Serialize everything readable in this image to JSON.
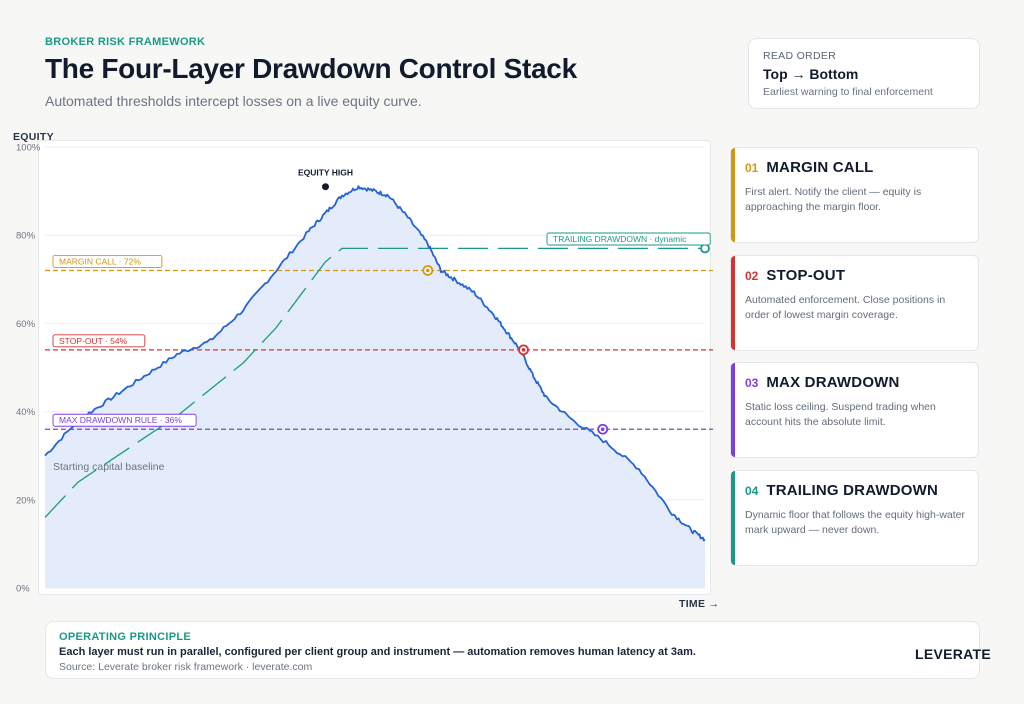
{
  "header": {
    "eyebrow": "BROKER RISK FRAMEWORK",
    "title": "The Four-Layer Drawdown Control Stack",
    "subtitle": "Automated thresholds intercept losses on a live equity curve."
  },
  "read_order": {
    "label": "READ ORDER",
    "value": "Top → Bottom",
    "note": "Earliest warning to final enforcement"
  },
  "layers": [
    {
      "num": "01",
      "name": "MARGIN CALL",
      "color": "#d4960f",
      "desc": "First alert. Notify the client — equity is approaching the margin floor."
    },
    {
      "num": "02",
      "name": "STOP-OUT",
      "color": "#d63333",
      "desc": "Automated enforcement. Close positions in order of lowest margin coverage."
    },
    {
      "num": "03",
      "name": "MAX DRAWDOWN",
      "color": "#7b3fe0",
      "desc": "Static loss ceiling. Suspend trading when account hits the absolute limit."
    },
    {
      "num": "04",
      "name": "TRAILING DRAWDOWN",
      "color": "#1a9a86",
      "desc": "Dynamic floor that follows the equity high-water mark upward — never down."
    }
  ],
  "footer": {
    "label": "OPERATING PRINCIPLE",
    "text": "Each layer must run in parallel, configured per client group and instrument — automation removes human latency at 3am.",
    "source": "Source: Leverate broker risk framework  ·  leverate.com",
    "brand": "LEVERATE"
  },
  "chart_data": {
    "type": "line",
    "ylabel": "EQUITY",
    "xlabel": "TIME →",
    "ylim": [
      0,
      100
    ],
    "xlim": [
      0,
      100
    ],
    "yticks": [
      "0%",
      "20%",
      "40%",
      "60%",
      "80%",
      "100%"
    ],
    "ytick_values": [
      0,
      20,
      40,
      60,
      80,
      100
    ],
    "grid": true,
    "baseline_label": "Starting capital baseline",
    "series": [
      {
        "type": "area",
        "color": "#2563d9",
        "x": [
          0,
          5,
          10,
          15,
          20,
          25,
          30,
          35,
          40,
          42.5,
          45,
          47.5,
          50,
          52,
          55,
          58,
          60,
          62,
          65,
          68,
          70,
          72,
          74,
          76,
          80,
          85,
          90,
          95,
          98,
          100
        ],
        "y": [
          30,
          38,
          43,
          48,
          53,
          56,
          63,
          72,
          81,
          85,
          89,
          91,
          90,
          89,
          84,
          78,
          72,
          70,
          67,
          62,
          58,
          54,
          48,
          43,
          38,
          33,
          27,
          17,
          13,
          11
        ]
      },
      {
        "name": "TRAILING DRAWDOWN · dynamic",
        "type": "line",
        "dashed": true,
        "color": "#1a9a86",
        "x": [
          0,
          5,
          10,
          15,
          20,
          25,
          30,
          35,
          40,
          42.5,
          45,
          50,
          55,
          60,
          70,
          80,
          90,
          100
        ],
        "y": [
          16,
          24,
          29,
          34,
          39,
          45,
          51,
          59,
          69,
          74,
          77,
          77,
          77,
          77,
          77,
          77,
          77,
          77
        ]
      }
    ],
    "thresholds": [
      {
        "label": "MARGIN CALL · 72%",
        "value": 72,
        "color": "#d4960f"
      },
      {
        "label": "STOP-OUT · 54%",
        "value": 54,
        "color": "#d63333"
      },
      {
        "label": "MAX DRAWDOWN RULE · 36%",
        "value": 36,
        "color": "#7b3fe0"
      }
    ],
    "markers": [
      {
        "x": 58,
        "y": 72,
        "color": "#d4960f"
      },
      {
        "x": 72.5,
        "y": 54,
        "color": "#d63333"
      },
      {
        "x": 84.5,
        "y": 36,
        "color": "#7b3fe0"
      }
    ],
    "annotations": [
      {
        "label": "EQUITY HIGH",
        "x": 42.5,
        "y": 91
      }
    ],
    "trailing_end": {
      "x": 100,
      "y": 77
    }
  }
}
